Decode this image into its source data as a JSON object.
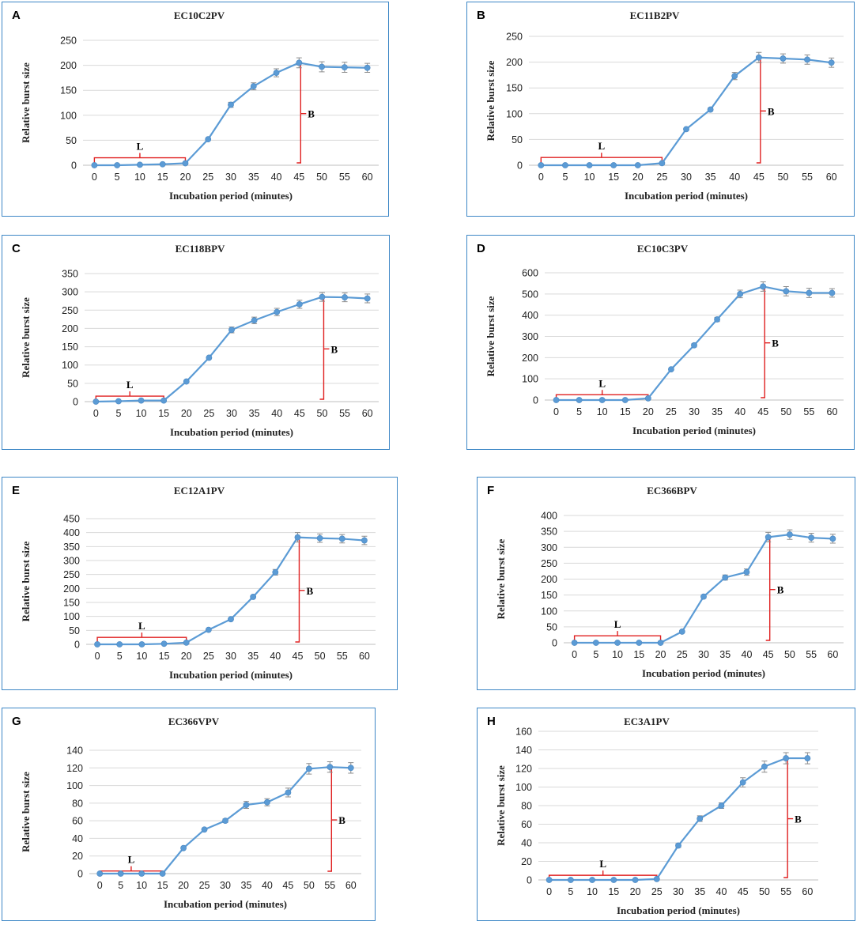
{
  "chart_data": [
    {
      "type": "line",
      "panel_letter": "A",
      "title": "EC10C2PV",
      "xlabel": "Incubation period (minutes)",
      "ylabel": "Relative burst size",
      "x": [
        0,
        5,
        10,
        15,
        20,
        25,
        30,
        35,
        40,
        45,
        50,
        55,
        60
      ],
      "y": [
        0,
        0,
        1,
        2,
        4,
        52,
        121,
        158,
        185,
        205,
        197,
        196,
        195
      ],
      "err": [
        0,
        0,
        0,
        0,
        0,
        0,
        5,
        7,
        8,
        10,
        10,
        10,
        9
      ],
      "ylim": [
        0,
        250
      ],
      "yticks": [
        0,
        50,
        100,
        150,
        200,
        250
      ],
      "latent_label": "L",
      "latent_range": [
        0,
        20
      ],
      "latent_height": 15,
      "burst_label": "B",
      "burst_x": 45
    },
    {
      "type": "line",
      "panel_letter": "B",
      "title": "EC11B2PV",
      "xlabel": "Incubation period (minutes)",
      "ylabel": "Relative burst size",
      "x": [
        0,
        5,
        10,
        15,
        20,
        25,
        30,
        35,
        40,
        45,
        50,
        55,
        60
      ],
      "y": [
        0,
        0,
        0,
        0,
        0,
        4,
        70,
        108,
        173,
        209,
        207,
        205,
        199
      ],
      "err": [
        0,
        0,
        0,
        0,
        0,
        0,
        2,
        3,
        7,
        10,
        9,
        9,
        9
      ],
      "ylim": [
        0,
        250
      ],
      "yticks": [
        0,
        50,
        100,
        150,
        200,
        250
      ],
      "latent_label": "L",
      "latent_range": [
        0,
        25
      ],
      "latent_height": 15,
      "burst_label": "B",
      "burst_x": 45
    },
    {
      "type": "line",
      "panel_letter": "C",
      "title": "EC118BPV",
      "xlabel": "Incubation period (minutes)",
      "ylabel": "Relative burst size",
      "x": [
        0,
        5,
        10,
        15,
        20,
        25,
        30,
        35,
        40,
        45,
        50,
        55,
        60
      ],
      "y": [
        0,
        1,
        3,
        3,
        55,
        120,
        196,
        222,
        245,
        266,
        286,
        285,
        282
      ],
      "err": [
        0,
        0,
        0,
        0,
        0,
        0,
        8,
        9,
        10,
        11,
        12,
        12,
        12
      ],
      "ylim": [
        0,
        350
      ],
      "yticks": [
        0,
        50,
        100,
        150,
        200,
        250,
        300,
        350
      ],
      "latent_label": "L",
      "latent_range": [
        0,
        15
      ],
      "latent_height": 15,
      "burst_label": "B",
      "burst_x": 50
    },
    {
      "type": "line",
      "panel_letter": "D",
      "title": "EC10C3PV",
      "xlabel": "Incubation period (minutes)",
      "ylabel": "Relative burst size",
      "x": [
        0,
        5,
        10,
        15,
        20,
        25,
        30,
        35,
        40,
        45,
        50,
        55,
        60
      ],
      "y": [
        0,
        0,
        0,
        0,
        8,
        145,
        258,
        380,
        500,
        535,
        513,
        505,
        505
      ],
      "err": [
        0,
        0,
        0,
        0,
        0,
        0,
        8,
        10,
        18,
        22,
        22,
        22,
        20
      ],
      "ylim": [
        0,
        600
      ],
      "yticks": [
        0,
        100,
        200,
        300,
        400,
        500,
        600
      ],
      "latent_label": "L",
      "latent_range": [
        0,
        20
      ],
      "latent_height": 25,
      "burst_label": "B",
      "burst_x": 45
    },
    {
      "type": "line",
      "panel_letter": "E",
      "title": "EC12A1PV",
      "xlabel": "Incubation period (minutes)",
      "ylabel": "Relative burst size",
      "x": [
        0,
        5,
        10,
        15,
        20,
        25,
        30,
        35,
        40,
        45,
        50,
        55,
        60
      ],
      "y": [
        0,
        0,
        0,
        2,
        6,
        52,
        90,
        170,
        258,
        383,
        380,
        378,
        372
      ],
      "err": [
        0,
        0,
        0,
        0,
        0,
        0,
        0,
        0,
        10,
        17,
        15,
        15,
        15
      ],
      "ylim": [
        0,
        450
      ],
      "yticks": [
        0,
        50,
        100,
        150,
        200,
        250,
        300,
        350,
        400,
        450
      ],
      "latent_label": "L",
      "latent_range": [
        0,
        20
      ],
      "latent_height": 25,
      "burst_label": "B",
      "burst_x": 45
    },
    {
      "type": "line",
      "panel_letter": "F",
      "title": "EC366BPV",
      "xlabel": "Incubation period (minutes)",
      "ylabel": "Relative burst size",
      "x": [
        0,
        5,
        10,
        15,
        20,
        25,
        30,
        35,
        40,
        45,
        50,
        55,
        60
      ],
      "y": [
        0,
        0,
        0,
        0,
        0,
        35,
        145,
        205,
        222,
        332,
        340,
        330,
        327
      ],
      "err": [
        0,
        0,
        0,
        0,
        0,
        0,
        5,
        8,
        10,
        15,
        15,
        14,
        14
      ],
      "ylim": [
        0,
        400
      ],
      "yticks": [
        0,
        50,
        100,
        150,
        200,
        250,
        300,
        350,
        400
      ],
      "latent_label": "L",
      "latent_range": [
        0,
        20
      ],
      "latent_height": 22,
      "burst_label": "B",
      "burst_x": 45
    },
    {
      "type": "line",
      "panel_letter": "G",
      "title": "EC366VPV",
      "xlabel": "Incubation period (minutes)",
      "ylabel": "Relative burst size",
      "x": [
        0,
        5,
        10,
        15,
        20,
        25,
        30,
        35,
        40,
        45,
        50,
        55,
        60
      ],
      "y": [
        0,
        0,
        0,
        0,
        29,
        50,
        60,
        78,
        81,
        92,
        119,
        121,
        120
      ],
      "err": [
        0,
        0,
        0,
        0,
        0,
        0,
        2,
        4,
        4,
        5,
        6,
        6,
        6
      ],
      "ylim": [
        0,
        140
      ],
      "yticks": [
        0,
        20,
        40,
        60,
        80,
        100,
        120,
        140
      ],
      "latent_label": "L",
      "latent_range": [
        0,
        15
      ],
      "latent_height": 3,
      "burst_label": "B",
      "burst_x": 55
    },
    {
      "type": "line",
      "panel_letter": "H",
      "title": "EC3A1PV",
      "xlabel": "Incubation period (minutes)",
      "ylabel": "Relative burst size",
      "x": [
        0,
        5,
        10,
        15,
        20,
        25,
        30,
        35,
        40,
        45,
        50,
        55,
        60
      ],
      "y": [
        0,
        0,
        0,
        0,
        0,
        1,
        37,
        66,
        80,
        105,
        122,
        131,
        131
      ],
      "err": [
        0,
        0,
        0,
        0,
        0,
        0,
        2,
        3,
        3,
        5,
        6,
        6,
        6
      ],
      "ylim": [
        0,
        160
      ],
      "yticks": [
        0,
        20,
        40,
        60,
        80,
        100,
        120,
        140,
        160
      ],
      "latent_label": "L",
      "latent_range": [
        0,
        25
      ],
      "latent_height": 5,
      "burst_label": "B",
      "burst_x": 55
    }
  ]
}
